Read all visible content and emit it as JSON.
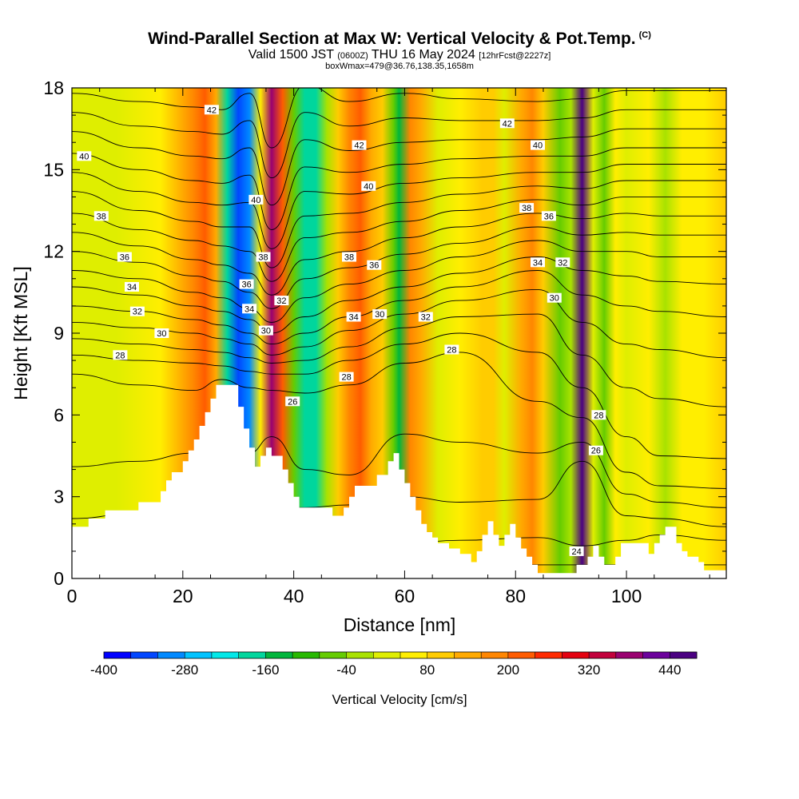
{
  "title": {
    "main": "Wind-Parallel Section at Max W: Vertical Velocity & Pot.Temp.",
    "copyright_mark": "(C)",
    "valid_prefix": "Valid 1500 JST",
    "valid_utc": "(0600Z)",
    "valid_date": "THU 16 May 2024",
    "forecast_info": "[12hrFcst@2227z]",
    "box_info": "boxWmax=479@36.76,138.35,1658m"
  },
  "chart_data": {
    "type": "heatmap",
    "title": "Wind-Parallel Section at Max W: Vertical Velocity & Pot.Temp.",
    "xlabel": "Distance [nm]",
    "ylabel": "Height [Kft MSL]",
    "xlim": [
      0,
      118
    ],
    "ylim": [
      0,
      18
    ],
    "x_ticks": [
      0,
      20,
      40,
      60,
      80,
      100
    ],
    "y_ticks": [
      0,
      3,
      6,
      9,
      12,
      15,
      18
    ],
    "colorbar": {
      "label": "Vertical Velocity [cm/s]",
      "min": -400,
      "max": 480,
      "step": 40,
      "tick_labels": [
        "-400",
        "-280",
        "-160",
        "-40",
        "80",
        "200",
        "320",
        "440"
      ],
      "colors": [
        "#0000ff",
        "#0046ff",
        "#0089ff",
        "#00c3ff",
        "#00e8e8",
        "#00d69d",
        "#00b63c",
        "#27b900",
        "#65cc00",
        "#a9e200",
        "#dfee00",
        "#ffee00",
        "#ffcc00",
        "#ffaa00",
        "#ff8600",
        "#ff5c00",
        "#ff2a00",
        "#e40010",
        "#c2003c",
        "#9a0070",
        "#6c009c",
        "#4b0082"
      ]
    },
    "velocity_columns": [
      {
        "x": 0,
        "w": 0
      },
      {
        "x": 8,
        "w": 10
      },
      {
        "x": 16,
        "w": 40
      },
      {
        "x": 22,
        "w": 170
      },
      {
        "x": 24,
        "w": 230
      },
      {
        "x": 26,
        "w": 120
      },
      {
        "x": 28,
        "w": -200
      },
      {
        "x": 30,
        "w": -340
      },
      {
        "x": 32,
        "w": -300
      },
      {
        "x": 34,
        "w": 60
      },
      {
        "x": 36,
        "w": 360
      },
      {
        "x": 38,
        "w": 200
      },
      {
        "x": 40,
        "w": -80
      },
      {
        "x": 42,
        "w": -200
      },
      {
        "x": 44,
        "w": -180
      },
      {
        "x": 46,
        "w": -40
      },
      {
        "x": 48,
        "w": 100
      },
      {
        "x": 50,
        "w": 180
      },
      {
        "x": 52,
        "w": 200
      },
      {
        "x": 54,
        "w": 150
      },
      {
        "x": 56,
        "w": 90
      },
      {
        "x": 58,
        "w": -60
      },
      {
        "x": 59,
        "w": -160
      },
      {
        "x": 61,
        "w": 180
      },
      {
        "x": 63,
        "w": 130
      },
      {
        "x": 66,
        "w": 30
      },
      {
        "x": 70,
        "w": 40
      },
      {
        "x": 74,
        "w": 90
      },
      {
        "x": 76,
        "w": 110
      },
      {
        "x": 78,
        "w": 10
      },
      {
        "x": 81,
        "w": 150
      },
      {
        "x": 83,
        "w": 170
      },
      {
        "x": 85,
        "w": 80
      },
      {
        "x": 88,
        "w": -80
      },
      {
        "x": 90,
        "w": -40
      },
      {
        "x": 92,
        "w": 479
      },
      {
        "x": 94,
        "w": 30
      },
      {
        "x": 96,
        "w": -50
      },
      {
        "x": 98,
        "w": 70
      },
      {
        "x": 100,
        "w": 30
      },
      {
        "x": 104,
        "w": 40
      },
      {
        "x": 107,
        "w": -30
      },
      {
        "x": 110,
        "w": 60
      },
      {
        "x": 114,
        "w": 70
      },
      {
        "x": 118,
        "w": 80
      }
    ],
    "terrain": [
      [
        0,
        1.9
      ],
      [
        3,
        1.9
      ],
      [
        3,
        2.2
      ],
      [
        6,
        2.2
      ],
      [
        6,
        2.5
      ],
      [
        12,
        2.5
      ],
      [
        12,
        2.8
      ],
      [
        16,
        2.8
      ],
      [
        16,
        3.2
      ],
      [
        17,
        3.2
      ],
      [
        17,
        3.6
      ],
      [
        18,
        3.6
      ],
      [
        18,
        3.9
      ],
      [
        20,
        3.9
      ],
      [
        20,
        4.3
      ],
      [
        21,
        4.3
      ],
      [
        21,
        4.7
      ],
      [
        22,
        4.7
      ],
      [
        22,
        5.1
      ],
      [
        23,
        5.1
      ],
      [
        23,
        5.6
      ],
      [
        24,
        5.6
      ],
      [
        24,
        6.1
      ],
      [
        25,
        6.1
      ],
      [
        25,
        6.6
      ],
      [
        26,
        6.6
      ],
      [
        26,
        7.1
      ],
      [
        30,
        7.1
      ],
      [
        30,
        6.3
      ],
      [
        31,
        6.3
      ],
      [
        31,
        5.5
      ],
      [
        32,
        5.5
      ],
      [
        32,
        4.8
      ],
      [
        33,
        4.8
      ],
      [
        33,
        4.1
      ],
      [
        34,
        4.1
      ],
      [
        34,
        4.5
      ],
      [
        35,
        4.5
      ],
      [
        35,
        4.8
      ],
      [
        36,
        4.8
      ],
      [
        36,
        4.5
      ],
      [
        38,
        4.5
      ],
      [
        38,
        4.0
      ],
      [
        39,
        4.0
      ],
      [
        39,
        3.5
      ],
      [
        40,
        3.5
      ],
      [
        40,
        3.0
      ],
      [
        41,
        3.0
      ],
      [
        41,
        2.6
      ],
      [
        47,
        2.6
      ],
      [
        47,
        2.3
      ],
      [
        49,
        2.3
      ],
      [
        49,
        2.6
      ],
      [
        50,
        2.6
      ],
      [
        50,
        3.0
      ],
      [
        51,
        3.0
      ],
      [
        51,
        3.4
      ],
      [
        55,
        3.4
      ],
      [
        55,
        3.8
      ],
      [
        57,
        3.8
      ],
      [
        57,
        4.3
      ],
      [
        58,
        4.3
      ],
      [
        58,
        4.6
      ],
      [
        59,
        4.6
      ],
      [
        59,
        4.0
      ],
      [
        60,
        4.0
      ],
      [
        60,
        3.5
      ],
      [
        61,
        3.5
      ],
      [
        61,
        3.0
      ],
      [
        62,
        3.0
      ],
      [
        62,
        2.5
      ],
      [
        63,
        2.5
      ],
      [
        63,
        2.0
      ],
      [
        64,
        2.0
      ],
      [
        64,
        1.7
      ],
      [
        65,
        1.7
      ],
      [
        65,
        1.5
      ],
      [
        66,
        1.5
      ],
      [
        66,
        1.3
      ],
      [
        68,
        1.3
      ],
      [
        68,
        1.1
      ],
      [
        70,
        1.1
      ],
      [
        70,
        0.9
      ],
      [
        72,
        0.9
      ],
      [
        72,
        0.6
      ],
      [
        73,
        0.6
      ],
      [
        73,
        1.0
      ],
      [
        74,
        1.0
      ],
      [
        74,
        1.6
      ],
      [
        75,
        1.6
      ],
      [
        75,
        2.1
      ],
      [
        76,
        2.1
      ],
      [
        76,
        1.6
      ],
      [
        77,
        1.6
      ],
      [
        77,
        1.2
      ],
      [
        78,
        1.2
      ],
      [
        78,
        1.6
      ],
      [
        79,
        1.6
      ],
      [
        79,
        2.0
      ],
      [
        80,
        2.0
      ],
      [
        80,
        1.5
      ],
      [
        81,
        1.5
      ],
      [
        81,
        1.1
      ],
      [
        82,
        1.1
      ],
      [
        82,
        0.8
      ],
      [
        83,
        0.8
      ],
      [
        83,
        0.5
      ],
      [
        84,
        0.5
      ],
      [
        84,
        0.2
      ],
      [
        87,
        0.2
      ],
      [
        87,
        0.2
      ],
      [
        91,
        0.2
      ],
      [
        91,
        0.5
      ],
      [
        93,
        0.5
      ],
      [
        93,
        0.8
      ],
      [
        94,
        0.8
      ],
      [
        94,
        1.2
      ],
      [
        95,
        1.2
      ],
      [
        95,
        0.8
      ],
      [
        96,
        0.8
      ],
      [
        96,
        0.5
      ],
      [
        98,
        0.5
      ],
      [
        98,
        0.8
      ],
      [
        99,
        0.8
      ],
      [
        99,
        1.3
      ],
      [
        104,
        1.3
      ],
      [
        104,
        0.9
      ],
      [
        105,
        0.9
      ],
      [
        105,
        1.3
      ],
      [
        106,
        1.3
      ],
      [
        106,
        1.6
      ],
      [
        107,
        1.6
      ],
      [
        107,
        1.9
      ],
      [
        109,
        1.9
      ],
      [
        109,
        1.3
      ],
      [
        110,
        1.3
      ],
      [
        110,
        1.0
      ],
      [
        111,
        1.0
      ],
      [
        111,
        0.8
      ],
      [
        113,
        0.8
      ],
      [
        113,
        0.6
      ],
      [
        114,
        0.6
      ],
      [
        114,
        0.3
      ],
      [
        118,
        0.3
      ]
    ],
    "contours": {
      "variable": "Potential Temperature",
      "levels": [
        24,
        25,
        26,
        27,
        28,
        29,
        30,
        31,
        32,
        33,
        34,
        35,
        36,
        37,
        38,
        39,
        40,
        41,
        42,
        43
      ],
      "reference_heights": [
        [
          0,
          [
            0.5,
            1.3,
            2.2,
            4.1,
            7.5,
            8.2,
            8.8,
            9.4,
            10.0,
            10.7,
            11.3,
            12.0,
            12.7,
            13.4,
            14.2,
            14.9,
            15.6,
            16.4,
            17.1,
            17.8
          ]
        ],
        [
          12,
          [
            0.5,
            1.3,
            2.4,
            4.3,
            7.1,
            8.0,
            8.6,
            9.2,
            9.8,
            10.4,
            11.0,
            11.6,
            12.2,
            12.8,
            13.5,
            14.2,
            15.0,
            15.8,
            16.6,
            17.5
          ]
        ],
        [
          22,
          [
            0.5,
            1.3,
            2.5,
            4.6,
            6.9,
            7.9,
            8.4,
            9.0,
            9.5,
            10.0,
            10.5,
            11.1,
            11.7,
            12.4,
            13.1,
            13.8,
            14.6,
            15.5,
            16.4,
            17.3
          ]
        ],
        [
          27,
          [
            0.5,
            1.3,
            2.6,
            5.0,
            7.3,
            7.8,
            8.3,
            8.8,
            9.3,
            9.8,
            10.3,
            10.9,
            11.5,
            12.2,
            12.9,
            13.7,
            14.5,
            15.4,
            16.3,
            17.2
          ]
        ],
        [
          32,
          [
            0.5,
            1.3,
            2.6,
            4.6,
            7.0,
            7.6,
            8.1,
            8.6,
            9.0,
            9.5,
            9.9,
            10.5,
            11.2,
            12.0,
            12.9,
            13.8,
            14.8,
            15.8,
            16.8,
            17.8
          ]
        ],
        [
          36,
          [
            0.5,
            1.3,
            2.6,
            5.2,
            6.9,
            7.5,
            7.9,
            8.2,
            8.6,
            9.0,
            9.4,
            9.9,
            10.4,
            10.9,
            11.4,
            12.1,
            12.8,
            13.7,
            14.7,
            15.8
          ]
        ],
        [
          42,
          [
            0.5,
            1.3,
            2.6,
            4.0,
            6.8,
            7.5,
            8.0,
            8.5,
            9.0,
            9.6,
            10.3,
            11.0,
            11.7,
            12.5,
            13.3,
            14.2,
            15.1,
            16.1,
            17.1,
            18.1
          ]
        ],
        [
          50,
          [
            0.5,
            1.3,
            2.7,
            3.8,
            7.1,
            8.0,
            8.5,
            9.1,
            9.6,
            10.2,
            10.8,
            11.4,
            12.0,
            12.7,
            13.4,
            14.1,
            14.9,
            15.7,
            16.6,
            17.5
          ]
        ],
        [
          60,
          [
            0.5,
            1.3,
            3.0,
            5.3,
            7.9,
            8.6,
            9.2,
            9.7,
            10.2,
            10.7,
            11.3,
            11.9,
            12.5,
            13.1,
            13.8,
            14.5,
            15.2,
            16.0,
            16.9,
            17.8
          ]
        ],
        [
          70,
          [
            0.5,
            1.4,
            2.8,
            5.0,
            8.3,
            9.0,
            9.6,
            10.2,
            10.7,
            11.2,
            11.8,
            12.3,
            12.9,
            13.5,
            14.1,
            14.7,
            15.4,
            16.1,
            16.8,
            17.6
          ]
        ],
        [
          84,
          [
            0.5,
            1.5,
            2.9,
            4.6,
            6.5,
            8.3,
            9.7,
            10.6,
            11.3,
            11.8,
            12.4,
            12.9,
            13.4,
            13.9,
            14.4,
            14.9,
            15.5,
            16.1,
            16.8,
            17.5
          ]
        ],
        [
          92,
          [
            0.5,
            1.2,
            4.3,
            5.0,
            5.9,
            7.0,
            8.2,
            9.4,
            10.4,
            11.3,
            12.0,
            12.6,
            13.2,
            13.7,
            14.3,
            14.9,
            15.5,
            16.2,
            16.9,
            17.6
          ]
        ],
        [
          100,
          [
            0.5,
            1.4,
            2.3,
            3.1,
            3.9,
            5.2,
            7.0,
            8.6,
            10.0,
            11.1,
            12.0,
            12.7,
            13.4,
            14.0,
            14.6,
            15.2,
            15.8,
            16.5,
            17.2,
            17.9
          ]
        ],
        [
          106,
          [
            0.5,
            1.6,
            2.2,
            2.8,
            3.4,
            4.5,
            6.6,
            8.4,
            9.8,
            10.9,
            11.8,
            12.6,
            13.3,
            14.0,
            14.6,
            15.2,
            15.8,
            16.5,
            17.2,
            17.9
          ]
        ],
        [
          118,
          [
            0.5,
            1.4,
            1.9,
            2.6,
            3.3,
            4.4,
            6.3,
            8.1,
            9.6,
            10.8,
            11.8,
            12.6,
            13.3,
            14.0,
            14.6,
            15.2,
            15.8,
            16.5,
            17.2,
            17.9
          ]
        ]
      ],
      "labels": [
        {
          "text": "42",
          "x": 25.2,
          "y": 17.2
        },
        {
          "text": "40",
          "x": 2.2,
          "y": 15.5
        },
        {
          "text": "38",
          "x": 5.3,
          "y": 13.3
        },
        {
          "text": "36",
          "x": 9.5,
          "y": 11.8
        },
        {
          "text": "34",
          "x": 10.8,
          "y": 10.7
        },
        {
          "text": "32",
          "x": 11.8,
          "y": 9.8
        },
        {
          "text": "30",
          "x": 16.2,
          "y": 9.0
        },
        {
          "text": "28",
          "x": 8.7,
          "y": 8.2
        },
        {
          "text": "40",
          "x": 33.2,
          "y": 13.9
        },
        {
          "text": "38",
          "x": 34.5,
          "y": 11.8
        },
        {
          "text": "36",
          "x": 31.5,
          "y": 10.8
        },
        {
          "text": "34",
          "x": 32.0,
          "y": 9.9
        },
        {
          "text": "32",
          "x": 37.8,
          "y": 10.2
        },
        {
          "text": "30",
          "x": 35.0,
          "y": 9.1
        },
        {
          "text": "26",
          "x": 39.8,
          "y": 6.5
        },
        {
          "text": "42",
          "x": 51.8,
          "y": 15.9
        },
        {
          "text": "40",
          "x": 53.5,
          "y": 14.4
        },
        {
          "text": "38",
          "x": 50.0,
          "y": 11.8
        },
        {
          "text": "36",
          "x": 54.5,
          "y": 11.5
        },
        {
          "text": "34",
          "x": 50.8,
          "y": 9.6
        },
        {
          "text": "30",
          "x": 55.5,
          "y": 9.7
        },
        {
          "text": "32",
          "x": 63.8,
          "y": 9.6
        },
        {
          "text": "28",
          "x": 49.5,
          "y": 7.4
        },
        {
          "text": "28",
          "x": 68.5,
          "y": 8.4
        },
        {
          "text": "42",
          "x": 78.5,
          "y": 16.7
        },
        {
          "text": "40",
          "x": 84.0,
          "y": 15.9
        },
        {
          "text": "38",
          "x": 82.0,
          "y": 13.6
        },
        {
          "text": "36",
          "x": 86.0,
          "y": 13.3
        },
        {
          "text": "34",
          "x": 84.0,
          "y": 11.6
        },
        {
          "text": "32",
          "x": 88.5,
          "y": 11.6
        },
        {
          "text": "30",
          "x": 87.0,
          "y": 10.3
        },
        {
          "text": "28",
          "x": 95.0,
          "y": 6.0
        },
        {
          "text": "26",
          "x": 94.5,
          "y": 4.7
        },
        {
          "text": "24",
          "x": 91.0,
          "y": 1.0
        }
      ]
    }
  }
}
